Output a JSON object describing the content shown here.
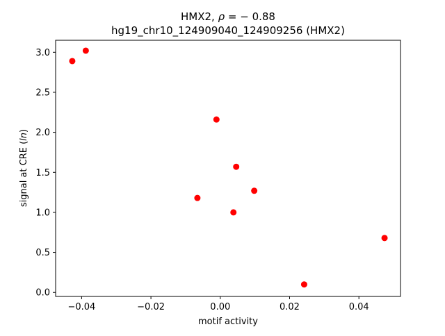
{
  "chart_data": {
    "type": "scatter",
    "title_prefix": "HMX2, ",
    "title_rho_symbol": "ρ",
    "title_rho_value": " = − 0.88",
    "subtitle": "hg19_chr10_124909040_124909256 (HMX2)",
    "xlabel": "motif activity",
    "ylabel_prefix": "signal at CRE (",
    "ylabel_italic": "ln",
    "ylabel_suffix": ")",
    "xlim": [
      -0.0475,
      0.052
    ],
    "ylim": [
      -0.05,
      3.15
    ],
    "xticks": [
      {
        "value": -0.04,
        "label": "−0.04"
      },
      {
        "value": -0.02,
        "label": "−0.02"
      },
      {
        "value": 0.0,
        "label": "0.00"
      },
      {
        "value": 0.02,
        "label": "0.02"
      },
      {
        "value": 0.04,
        "label": "0.04"
      }
    ],
    "yticks": [
      {
        "value": 0.0,
        "label": "0.0"
      },
      {
        "value": 0.5,
        "label": "0.5"
      },
      {
        "value": 1.0,
        "label": "1.0"
      },
      {
        "value": 1.5,
        "label": "1.5"
      },
      {
        "value": 2.0,
        "label": "2.0"
      },
      {
        "value": 2.5,
        "label": "2.5"
      },
      {
        "value": 3.0,
        "label": "3.0"
      }
    ],
    "grid": false,
    "marker_color": "#ff0000",
    "points": [
      {
        "x": -0.0427,
        "y": 2.89
      },
      {
        "x": -0.0388,
        "y": 3.02
      },
      {
        "x": -0.0011,
        "y": 2.16
      },
      {
        "x": 0.0046,
        "y": 1.57
      },
      {
        "x": -0.0066,
        "y": 1.18
      },
      {
        "x": 0.0098,
        "y": 1.27
      },
      {
        "x": 0.0038,
        "y": 1.0
      },
      {
        "x": 0.0474,
        "y": 0.68
      },
      {
        "x": 0.0242,
        "y": 0.1
      }
    ]
  }
}
